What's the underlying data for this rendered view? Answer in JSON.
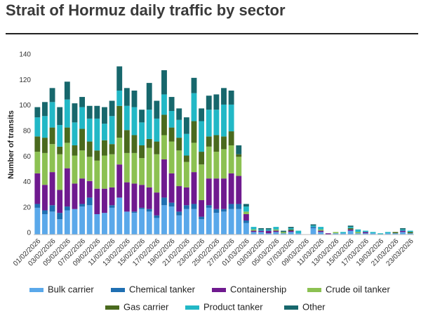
{
  "chart_data": {
    "type": "stacked_bar",
    "title": "Strait of Hormuz daily traffic by sector",
    "y_label": "Number of transits",
    "categories": [
      "01/02/2026",
      null,
      "03/02/2026",
      null,
      "05/02/2026",
      null,
      "07/02/2026",
      null,
      "09/02/2026",
      null,
      "11/02/2026",
      null,
      "13/02/2026",
      null,
      "15/02/2026",
      null,
      "17/02/2026",
      null,
      "19/02/2026",
      null,
      "21/02/2026",
      null,
      "23/02/2026",
      null,
      "25/02/2026",
      null,
      "27/02/2026",
      null,
      "01/03/2026",
      null,
      "03/03/2026",
      null,
      "05/03/2026",
      null,
      "07/03/2026",
      null,
      "09/03/2026",
      null,
      "11/03/2026",
      null,
      "13/03/2026",
      null,
      "15/03/2026",
      null,
      "17/03/2026",
      null,
      "19/03/2026",
      null,
      "21/03/2026",
      null,
      "23/03/2026"
    ],
    "series": [
      {
        "name": "Bulk carrier",
        "color": "#5aa8ea",
        "values": [
          21,
          16,
          18,
          12,
          19,
          20,
          22,
          23,
          16,
          17,
          21,
          29,
          18,
          17,
          20,
          18,
          13,
          23,
          22,
          15,
          20,
          20,
          12,
          21,
          17,
          18,
          20,
          20,
          9,
          2,
          2,
          1,
          2,
          1,
          2,
          1,
          0,
          5,
          2,
          0,
          1,
          1,
          3,
          1,
          1,
          1,
          0,
          1,
          1,
          2,
          1
        ]
      },
      {
        "name": "Chemical tanker",
        "color": "#1f6fb2",
        "values": [
          3,
          3,
          5,
          5,
          3,
          0,
          2,
          6,
          0,
          0,
          2,
          0,
          0,
          1,
          1,
          2,
          2,
          6,
          3,
          3,
          3,
          4,
          2,
          2,
          3,
          2,
          4,
          4,
          2,
          0,
          0,
          0,
          0,
          0,
          0,
          0,
          0,
          1,
          0,
          0,
          0,
          0,
          0,
          0,
          0,
          0,
          0,
          0,
          0,
          0,
          0
        ]
      },
      {
        "name": "Containership",
        "color": "#6f1a8f",
        "values": [
          24,
          20,
          26,
          18,
          30,
          20,
          20,
          13,
          20,
          19,
          14,
          26,
          23,
          22,
          18,
          17,
          18,
          30,
          23,
          20,
          14,
          25,
          13,
          21,
          24,
          24,
          24,
          22,
          5,
          1,
          1,
          2,
          1,
          0,
          1,
          0,
          0,
          0,
          1,
          1,
          0,
          0,
          1,
          0,
          1,
          0,
          0,
          0,
          0,
          1,
          0
        ]
      },
      {
        "name": "Crude oil tanker",
        "color": "#8cc152",
        "values": [
          17,
          25,
          22,
          28,
          20,
          22,
          22,
          19,
          22,
          26,
          26,
          21,
          23,
          24,
          21,
          31,
          30,
          19,
          25,
          28,
          20,
          23,
          28,
          25,
          21,
          23,
          22,
          15,
          2,
          1,
          0,
          0,
          1,
          1,
          0,
          0,
          0,
          0,
          1,
          0,
          1,
          0,
          0,
          1,
          0,
          0,
          0,
          0,
          0,
          0,
          0
        ]
      },
      {
        "name": "Gas carrier",
        "color": "#4a6a1e",
        "values": [
          12,
          12,
          13,
          6,
          12,
          8,
          17,
          12,
          8,
          12,
          8,
          25,
          18,
          14,
          10,
          7,
          10,
          16,
          11,
          10,
          5,
          17,
          10,
          8,
          13,
          10,
          11,
          2,
          0,
          0,
          0,
          0,
          0,
          0,
          1,
          0,
          0,
          0,
          0,
          0,
          0,
          0,
          1,
          0,
          0,
          0,
          0,
          0,
          1,
          0,
          1
        ]
      },
      {
        "name": "Product tanker",
        "color": "#22b8c6",
        "values": [
          15,
          17,
          20,
          17,
          22,
          18,
          17,
          18,
          25,
          13,
          22,
          12,
          19,
          22,
          18,
          23,
          18,
          16,
          13,
          14,
          17,
          22,
          24,
          21,
          20,
          25,
          21,
          0,
          4,
          2,
          1,
          1,
          2,
          0,
          1,
          2,
          0,
          1,
          2,
          0,
          0,
          1,
          1,
          2,
          1,
          1,
          1,
          1,
          0,
          1,
          1
        ]
      },
      {
        "name": "Other",
        "color": "#17676c",
        "values": [
          8,
          11,
          11,
          14,
          14,
          15,
          8,
          10,
          10,
          13,
          12,
          19,
          14,
          13,
          10,
          21,
          14,
          19,
          11,
          9,
          13,
          12,
          10,
          11,
          12,
          13,
          11,
          7,
          2,
          0,
          1,
          1,
          0,
          1,
          1,
          0,
          0,
          1,
          0,
          0,
          0,
          0,
          1,
          0,
          0,
          0,
          0,
          0,
          0,
          1,
          0
        ]
      }
    ],
    "ylim": [
      0,
      140
    ],
    "yticks": [
      0,
      20,
      40,
      60,
      80,
      100,
      120,
      140
    ],
    "grid": false
  }
}
